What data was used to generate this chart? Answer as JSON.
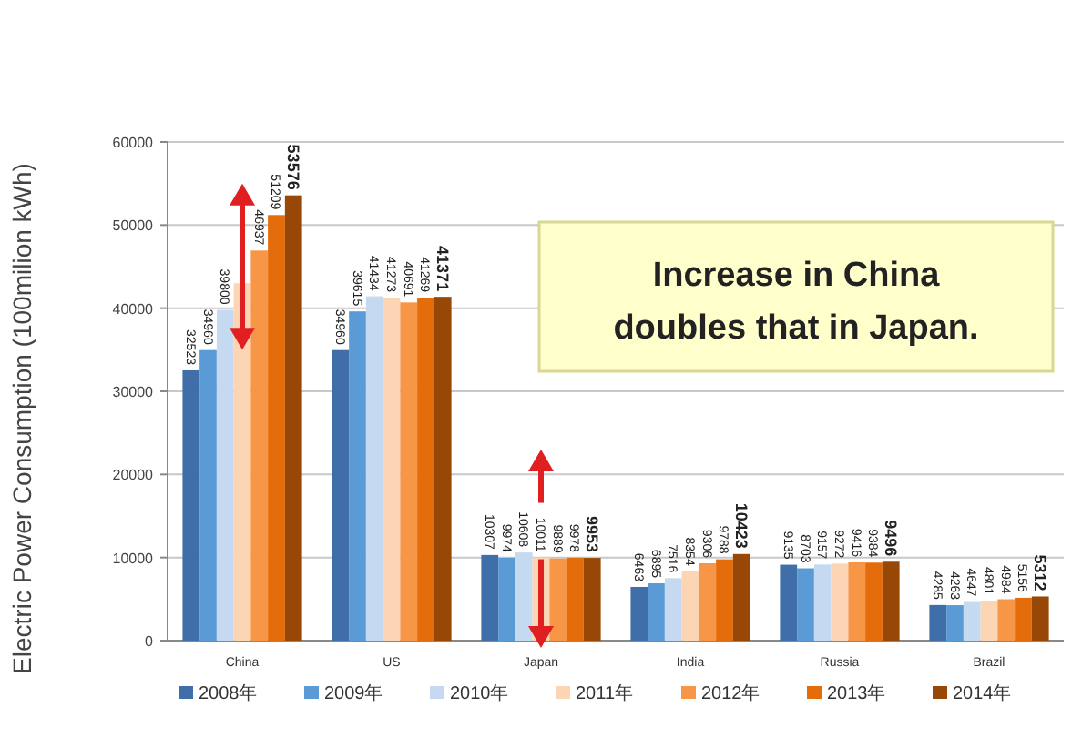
{
  "chart_data": {
    "type": "bar",
    "ylabel": "Electric Power Consumption (100milion kWh)",
    "categories": [
      "China",
      "US",
      "Japan",
      "India",
      "Russia",
      "Brazil"
    ],
    "ylim": [
      0,
      60000
    ],
    "yticks": [
      0,
      10000,
      20000,
      30000,
      40000,
      50000,
      60000
    ],
    "grid": "y",
    "legend": "bottom",
    "annotations": [
      "Increase in China doubles that in Japan."
    ],
    "series": [
      {
        "name": "2008年",
        "color": "#3f6ea8",
        "values": [
          32523,
          34960,
          10307,
          6463,
          9135,
          4285
        ],
        "value_labels": [
          "32523",
          "34960",
          "10307",
          "6463",
          "9135",
          "4285"
        ]
      },
      {
        "name": "2009年",
        "color": "#5b9bd5",
        "values": [
          34960,
          39615,
          9974,
          6895,
          8703,
          4263
        ],
        "value_labels": [
          "34960",
          "39615",
          "9974",
          "6895",
          "8703",
          "4263"
        ]
      },
      {
        "name": "2010年",
        "color": "#c5d9f1",
        "values": [
          39800,
          41434,
          10608,
          7516,
          9157,
          4647
        ],
        "value_labels": [
          "39800",
          "41434",
          "10608",
          "7516",
          "9157",
          "4647"
        ]
      },
      {
        "name": "2011年",
        "color": "#fcd5b4",
        "values": [
          43000,
          41273,
          10011,
          8354,
          9272,
          4801
        ],
        "value_labels": [
          null,
          "41273",
          "10011",
          "8354",
          "9272",
          "4801"
        ]
      },
      {
        "name": "2012年",
        "color": "#f79646",
        "values": [
          46937,
          40691,
          9889,
          9306,
          9416,
          4984
        ],
        "value_labels": [
          "46937",
          "40691",
          "9889",
          "9306",
          "9416",
          "4984"
        ]
      },
      {
        "name": "2013年",
        "color": "#e46c0a",
        "values": [
          51209,
          41269,
          9978,
          9788,
          9384,
          5156
        ],
        "value_labels": [
          "51209",
          "41269",
          "9978",
          "9788",
          "9384",
          "5156"
        ]
      },
      {
        "name": "2014年",
        "color": "#974806",
        "values": [
          53576,
          41371,
          9953,
          10423,
          9496,
          5312
        ],
        "value_labels": [
          "53576",
          "41371",
          "9953",
          "10423",
          "9496",
          "5312"
        ]
      }
    ]
  }
}
